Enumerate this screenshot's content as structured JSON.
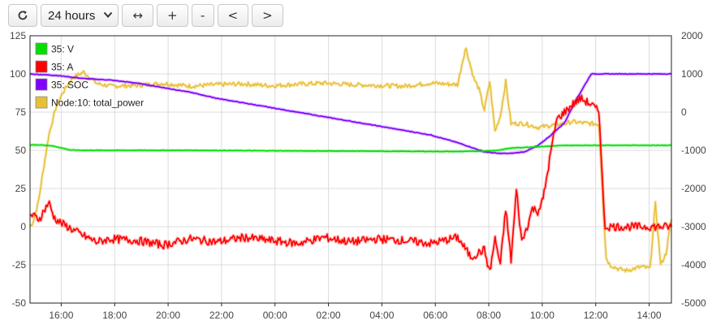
{
  "toolbar": {
    "refresh_icon": "refresh-icon",
    "range_value": "24 hours",
    "range_chevron_icon": "chevron-down-icon",
    "fit_label": "↔",
    "zoom_in_label": "+",
    "zoom_out_label": "-",
    "prev_label": "<",
    "next_label": ">"
  },
  "chart_data": {
    "type": "line",
    "x_ticks": [
      "16:00",
      "18:00",
      "20:00",
      "22:00",
      "00:00",
      "02:00",
      "04:00",
      "06:00",
      "08:00",
      "10:00",
      "12:00",
      "14:00"
    ],
    "x_range": [
      "14:50",
      "14:50 (+24h)"
    ],
    "y_left": {
      "range": [
        -50,
        125
      ],
      "ticks": [
        125,
        100,
        75,
        50,
        25,
        0,
        -25,
        -50
      ]
    },
    "y_right": {
      "range": [
        -5000,
        2000
      ],
      "ticks": [
        2000,
        1000,
        0,
        -1000,
        -2000,
        -3000,
        -4000,
        -5000
      ]
    },
    "grid": true,
    "legend_position": "top-left",
    "series": [
      {
        "name": "35: V",
        "color": "#00e000",
        "axis": "left",
        "t": [
          0,
          0.4,
          0.8,
          1.2,
          1.5,
          2.0,
          4,
          6,
          8,
          10,
          12,
          14,
          16,
          17,
          17.5,
          18,
          20,
          21.5,
          22,
          24
        ],
        "values": [
          53.5,
          53.5,
          53,
          51.5,
          50.2,
          50,
          50,
          50,
          49.8,
          49.6,
          49.5,
          49.3,
          49.2,
          49.5,
          50,
          51.5,
          53.2,
          53.3,
          53.3,
          53.3
        ]
      },
      {
        "name": "35: A",
        "color": "#ff0000",
        "axis": "left",
        "t": [
          0,
          0.35,
          0.7,
          0.9,
          1.1,
          1.3,
          1.6,
          2.0,
          2.5,
          3,
          4,
          5,
          6,
          7,
          8,
          9,
          10,
          11,
          12,
          13,
          14,
          15,
          16,
          16.5,
          17,
          17.2,
          17.4,
          17.6,
          17.8,
          18.0,
          18.2,
          18.4,
          18.6,
          18.8,
          19.0,
          19.2,
          19.5,
          19.7,
          20.0,
          20.3,
          20.6,
          21.0,
          21.3,
          21.5,
          21.6,
          22,
          24
        ],
        "values": [
          8,
          5,
          16,
          6,
          3,
          1,
          -2,
          -6,
          -10,
          -8,
          -9,
          -12,
          -8,
          -10,
          -7,
          -9,
          -11,
          -7,
          -10,
          -8,
          -9,
          -11,
          -7,
          -20,
          -15,
          -30,
          -8,
          -25,
          12,
          -22,
          24,
          -10,
          0,
          12,
          10,
          18,
          50,
          70,
          75,
          80,
          84,
          80,
          75,
          0,
          0,
          0,
          0
        ]
      },
      {
        "name": "35: SOC",
        "color": "#7f00ff",
        "axis": "left",
        "t": [
          0,
          1,
          2,
          3,
          4,
          5,
          6,
          7,
          8,
          9,
          10,
          11,
          12,
          13,
          14,
          15,
          16,
          16.5,
          17,
          17.5,
          18,
          18.5,
          19,
          19.5,
          20,
          20.4,
          21,
          22,
          24
        ],
        "values": [
          100,
          99,
          97,
          96,
          94,
          91,
          88,
          84,
          81,
          78,
          75,
          72,
          69,
          66,
          63,
          60,
          55,
          52,
          49,
          48,
          48,
          49,
          53,
          60,
          68,
          82,
          100,
          100,
          100
        ]
      },
      {
        "name": "Node:10: total_power",
        "color": "#e8c038",
        "axis": "right",
        "t": [
          0,
          0.1,
          0.3,
          0.5,
          0.7,
          1.0,
          1.3,
          1.6,
          2.0,
          2.5,
          3,
          4,
          5,
          6,
          7,
          8,
          9,
          10,
          11,
          12,
          13,
          14,
          15,
          16,
          16.3,
          16.6,
          16.8,
          17.0,
          17.2,
          17.4,
          17.6,
          17.8,
          18,
          18.5,
          19,
          19.5,
          20,
          20.3,
          20.6,
          21.0,
          21.3,
          21.45,
          21.55,
          21.7,
          22,
          22.3,
          22.6,
          22.9,
          23.2,
          23.4,
          23.6,
          23.8,
          24
        ],
        "values": [
          -3000,
          -2900,
          -2400,
          -1500,
          -600,
          200,
          600,
          900,
          1050,
          750,
          680,
          700,
          750,
          680,
          720,
          740,
          690,
          730,
          760,
          720,
          700,
          680,
          760,
          720,
          1700,
          900,
          600,
          50,
          800,
          -500,
          -100,
          800,
          -300,
          -300,
          -400,
          -350,
          -300,
          -250,
          -280,
          -300,
          -320,
          -2400,
          -3800,
          -4000,
          -4100,
          -4150,
          -4100,
          -4050,
          -4100,
          -2400,
          -4000,
          -3700,
          -2800
        ]
      }
    ]
  }
}
